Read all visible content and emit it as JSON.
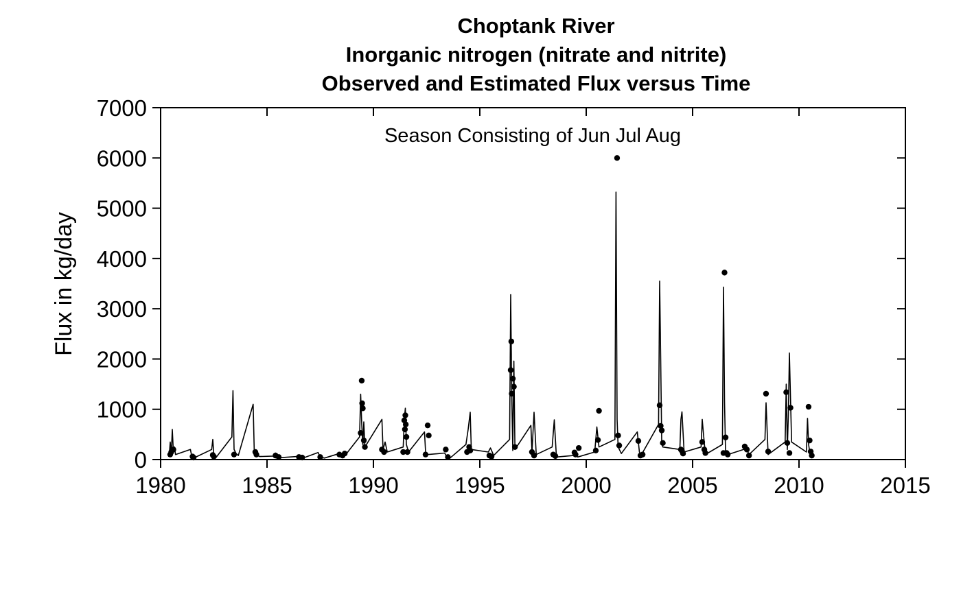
{
  "chart_data": {
    "type": "line",
    "title": "Choptank River",
    "subtitle": "Inorganic nitrogen (nitrate and nitrite)",
    "subtitle2": "Observed and Estimated Flux versus Time",
    "annotation": "Season Consisting of Jun Jul Aug",
    "xlabel": "",
    "ylabel": "Flux in kg/day",
    "xlim": [
      1980,
      2015
    ],
    "ylim": [
      0,
      7000
    ],
    "x_ticks": [
      1980,
      1985,
      1990,
      1995,
      2000,
      2005,
      2010,
      2015
    ],
    "y_ticks": [
      0,
      1000,
      2000,
      3000,
      4000,
      5000,
      6000,
      7000
    ],
    "grid": false,
    "series": [
      {
        "name": "",
        "style": "line",
        "points": [
          [
            1980.4,
            60
          ],
          [
            1980.45,
            350
          ],
          [
            1980.5,
            90
          ],
          [
            1980.55,
            600
          ],
          [
            1980.6,
            150
          ],
          [
            1980.65,
            250
          ],
          [
            1980.7,
            100
          ],
          [
            1981.4,
            200
          ],
          [
            1981.45,
            90
          ],
          [
            1981.5,
            60
          ],
          [
            1981.6,
            40
          ],
          [
            1982.4,
            200
          ],
          [
            1982.45,
            400
          ],
          [
            1982.5,
            100
          ],
          [
            1982.6,
            40
          ],
          [
            1983.35,
            450
          ],
          [
            1983.4,
            1370
          ],
          [
            1983.45,
            200
          ],
          [
            1983.55,
            120
          ],
          [
            1983.65,
            80
          ],
          [
            1984.35,
            1100
          ],
          [
            1984.4,
            160
          ],
          [
            1984.5,
            100
          ],
          [
            1984.65,
            60
          ],
          [
            1985.3,
            70
          ],
          [
            1985.4,
            130
          ],
          [
            1985.5,
            60
          ],
          [
            1985.7,
            40
          ],
          [
            1986.4,
            60
          ],
          [
            1986.55,
            40
          ],
          [
            1986.7,
            30
          ],
          [
            1987.4,
            140
          ],
          [
            1987.5,
            50
          ],
          [
            1987.7,
            30
          ],
          [
            1988.4,
            120
          ],
          [
            1988.5,
            60
          ],
          [
            1988.7,
            100
          ],
          [
            1989.35,
            450
          ],
          [
            1989.4,
            1300
          ],
          [
            1989.45,
            700
          ],
          [
            1989.5,
            300
          ],
          [
            1989.55,
            750
          ],
          [
            1989.6,
            250
          ],
          [
            1990.4,
            800
          ],
          [
            1990.45,
            200
          ],
          [
            1990.55,
            350
          ],
          [
            1990.65,
            150
          ],
          [
            1991.4,
            250
          ],
          [
            1991.45,
            800
          ],
          [
            1991.5,
            1020
          ],
          [
            1991.55,
            300
          ],
          [
            1991.65,
            150
          ],
          [
            1992.4,
            550
          ],
          [
            1992.45,
            150
          ],
          [
            1992.55,
            100
          ],
          [
            1993.35,
            130
          ],
          [
            1993.45,
            50
          ],
          [
            1993.6,
            30
          ],
          [
            1994.35,
            300
          ],
          [
            1994.45,
            600
          ],
          [
            1994.55,
            940
          ],
          [
            1994.6,
            200
          ],
          [
            1995.4,
            150
          ],
          [
            1995.5,
            230
          ],
          [
            1995.65,
            80
          ],
          [
            1996.4,
            400
          ],
          [
            1996.45,
            3280
          ],
          [
            1996.5,
            1350
          ],
          [
            1996.55,
            180
          ],
          [
            1996.6,
            1960
          ],
          [
            1996.65,
            200
          ],
          [
            1997.4,
            680
          ],
          [
            1997.45,
            150
          ],
          [
            1997.55,
            940
          ],
          [
            1997.65,
            100
          ],
          [
            1998.4,
            250
          ],
          [
            1998.5,
            790
          ],
          [
            1998.6,
            50
          ],
          [
            1999.4,
            80
          ],
          [
            1999.5,
            130
          ],
          [
            1999.6,
            50
          ],
          [
            2000.4,
            150
          ],
          [
            2000.5,
            650
          ],
          [
            2000.6,
            250
          ],
          [
            2001.35,
            400
          ],
          [
            2001.4,
            5320
          ],
          [
            2001.45,
            800
          ],
          [
            2001.5,
            250
          ],
          [
            2001.65,
            120
          ],
          [
            2002.4,
            550
          ],
          [
            2002.5,
            150
          ],
          [
            2002.6,
            100
          ],
          [
            2003.4,
            700
          ],
          [
            2003.45,
            3550
          ],
          [
            2003.5,
            2000
          ],
          [
            2003.55,
            350
          ],
          [
            2003.6,
            250
          ],
          [
            2004.4,
            200
          ],
          [
            2004.45,
            800
          ],
          [
            2004.5,
            950
          ],
          [
            2004.6,
            150
          ],
          [
            2005.4,
            250
          ],
          [
            2005.45,
            800
          ],
          [
            2005.5,
            560
          ],
          [
            2005.6,
            100
          ],
          [
            2006.4,
            300
          ],
          [
            2006.45,
            3430
          ],
          [
            2006.5,
            1150
          ],
          [
            2006.55,
            150
          ],
          [
            2006.65,
            100
          ],
          [
            2007.4,
            200
          ],
          [
            2007.5,
            250
          ],
          [
            2007.65,
            100
          ],
          [
            2008.4,
            400
          ],
          [
            2008.45,
            1130
          ],
          [
            2008.55,
            100
          ],
          [
            2009.35,
            350
          ],
          [
            2009.4,
            1500
          ],
          [
            2009.45,
            200
          ],
          [
            2009.5,
            900
          ],
          [
            2009.55,
            2120
          ],
          [
            2009.65,
            350
          ],
          [
            2010.35,
            150
          ],
          [
            2010.4,
            820
          ],
          [
            2010.45,
            300
          ],
          [
            2010.5,
            160
          ],
          [
            2010.6,
            100
          ]
        ]
      },
      {
        "name": "",
        "style": "points",
        "points": [
          [
            1980.45,
            100
          ],
          [
            1980.5,
            150
          ],
          [
            1980.6,
            200
          ],
          [
            1981.5,
            60
          ],
          [
            1981.55,
            40
          ],
          [
            1982.45,
            90
          ],
          [
            1982.5,
            60
          ],
          [
            1983.45,
            100
          ],
          [
            1984.45,
            150
          ],
          [
            1984.5,
            100
          ],
          [
            1985.4,
            80
          ],
          [
            1985.55,
            50
          ],
          [
            1986.5,
            50
          ],
          [
            1986.65,
            40
          ],
          [
            1987.5,
            50
          ],
          [
            1988.4,
            100
          ],
          [
            1988.55,
            80
          ],
          [
            1988.65,
            120
          ],
          [
            1989.4,
            530
          ],
          [
            1989.45,
            1570
          ],
          [
            1989.47,
            1120
          ],
          [
            1989.5,
            1020
          ],
          [
            1989.55,
            380
          ],
          [
            1989.6,
            250
          ],
          [
            1990.4,
            200
          ],
          [
            1990.5,
            150
          ],
          [
            1991.4,
            150
          ],
          [
            1991.45,
            780
          ],
          [
            1991.48,
            600
          ],
          [
            1991.5,
            880
          ],
          [
            1991.52,
            700
          ],
          [
            1991.55,
            450
          ],
          [
            1991.6,
            150
          ],
          [
            1992.45,
            100
          ],
          [
            1992.55,
            680
          ],
          [
            1992.6,
            480
          ],
          [
            1993.4,
            200
          ],
          [
            1993.5,
            50
          ],
          [
            1994.4,
            150
          ],
          [
            1994.5,
            250
          ],
          [
            1994.55,
            180
          ],
          [
            1995.45,
            80
          ],
          [
            1995.55,
            60
          ],
          [
            1996.45,
            1780
          ],
          [
            1996.48,
            2350
          ],
          [
            1996.5,
            1310
          ],
          [
            1996.55,
            1610
          ],
          [
            1996.6,
            1450
          ],
          [
            1996.65,
            250
          ],
          [
            1997.45,
            150
          ],
          [
            1997.55,
            80
          ],
          [
            1998.45,
            100
          ],
          [
            1998.55,
            70
          ],
          [
            1999.45,
            140
          ],
          [
            1999.5,
            100
          ],
          [
            1999.65,
            230
          ],
          [
            2000.45,
            180
          ],
          [
            2000.55,
            390
          ],
          [
            2000.6,
            970
          ],
          [
            2001.45,
            6000
          ],
          [
            2001.5,
            480
          ],
          [
            2001.55,
            280
          ],
          [
            2002.45,
            370
          ],
          [
            2002.55,
            80
          ],
          [
            2002.65,
            100
          ],
          [
            2003.45,
            1080
          ],
          [
            2003.5,
            670
          ],
          [
            2003.55,
            580
          ],
          [
            2003.6,
            330
          ],
          [
            2004.45,
            200
          ],
          [
            2004.5,
            170
          ],
          [
            2004.55,
            120
          ],
          [
            2005.45,
            350
          ],
          [
            2005.55,
            200
          ],
          [
            2005.6,
            130
          ],
          [
            2006.45,
            130
          ],
          [
            2006.5,
            3720
          ],
          [
            2006.55,
            440
          ],
          [
            2006.6,
            130
          ],
          [
            2006.65,
            100
          ],
          [
            2007.45,
            260
          ],
          [
            2007.55,
            200
          ],
          [
            2007.65,
            80
          ],
          [
            2008.45,
            1310
          ],
          [
            2008.55,
            160
          ],
          [
            2009.4,
            1340
          ],
          [
            2009.45,
            330
          ],
          [
            2009.55,
            130
          ],
          [
            2009.6,
            1030
          ],
          [
            2010.45,
            1050
          ],
          [
            2010.5,
            380
          ],
          [
            2010.55,
            160
          ],
          [
            2010.6,
            80
          ]
        ]
      }
    ]
  }
}
